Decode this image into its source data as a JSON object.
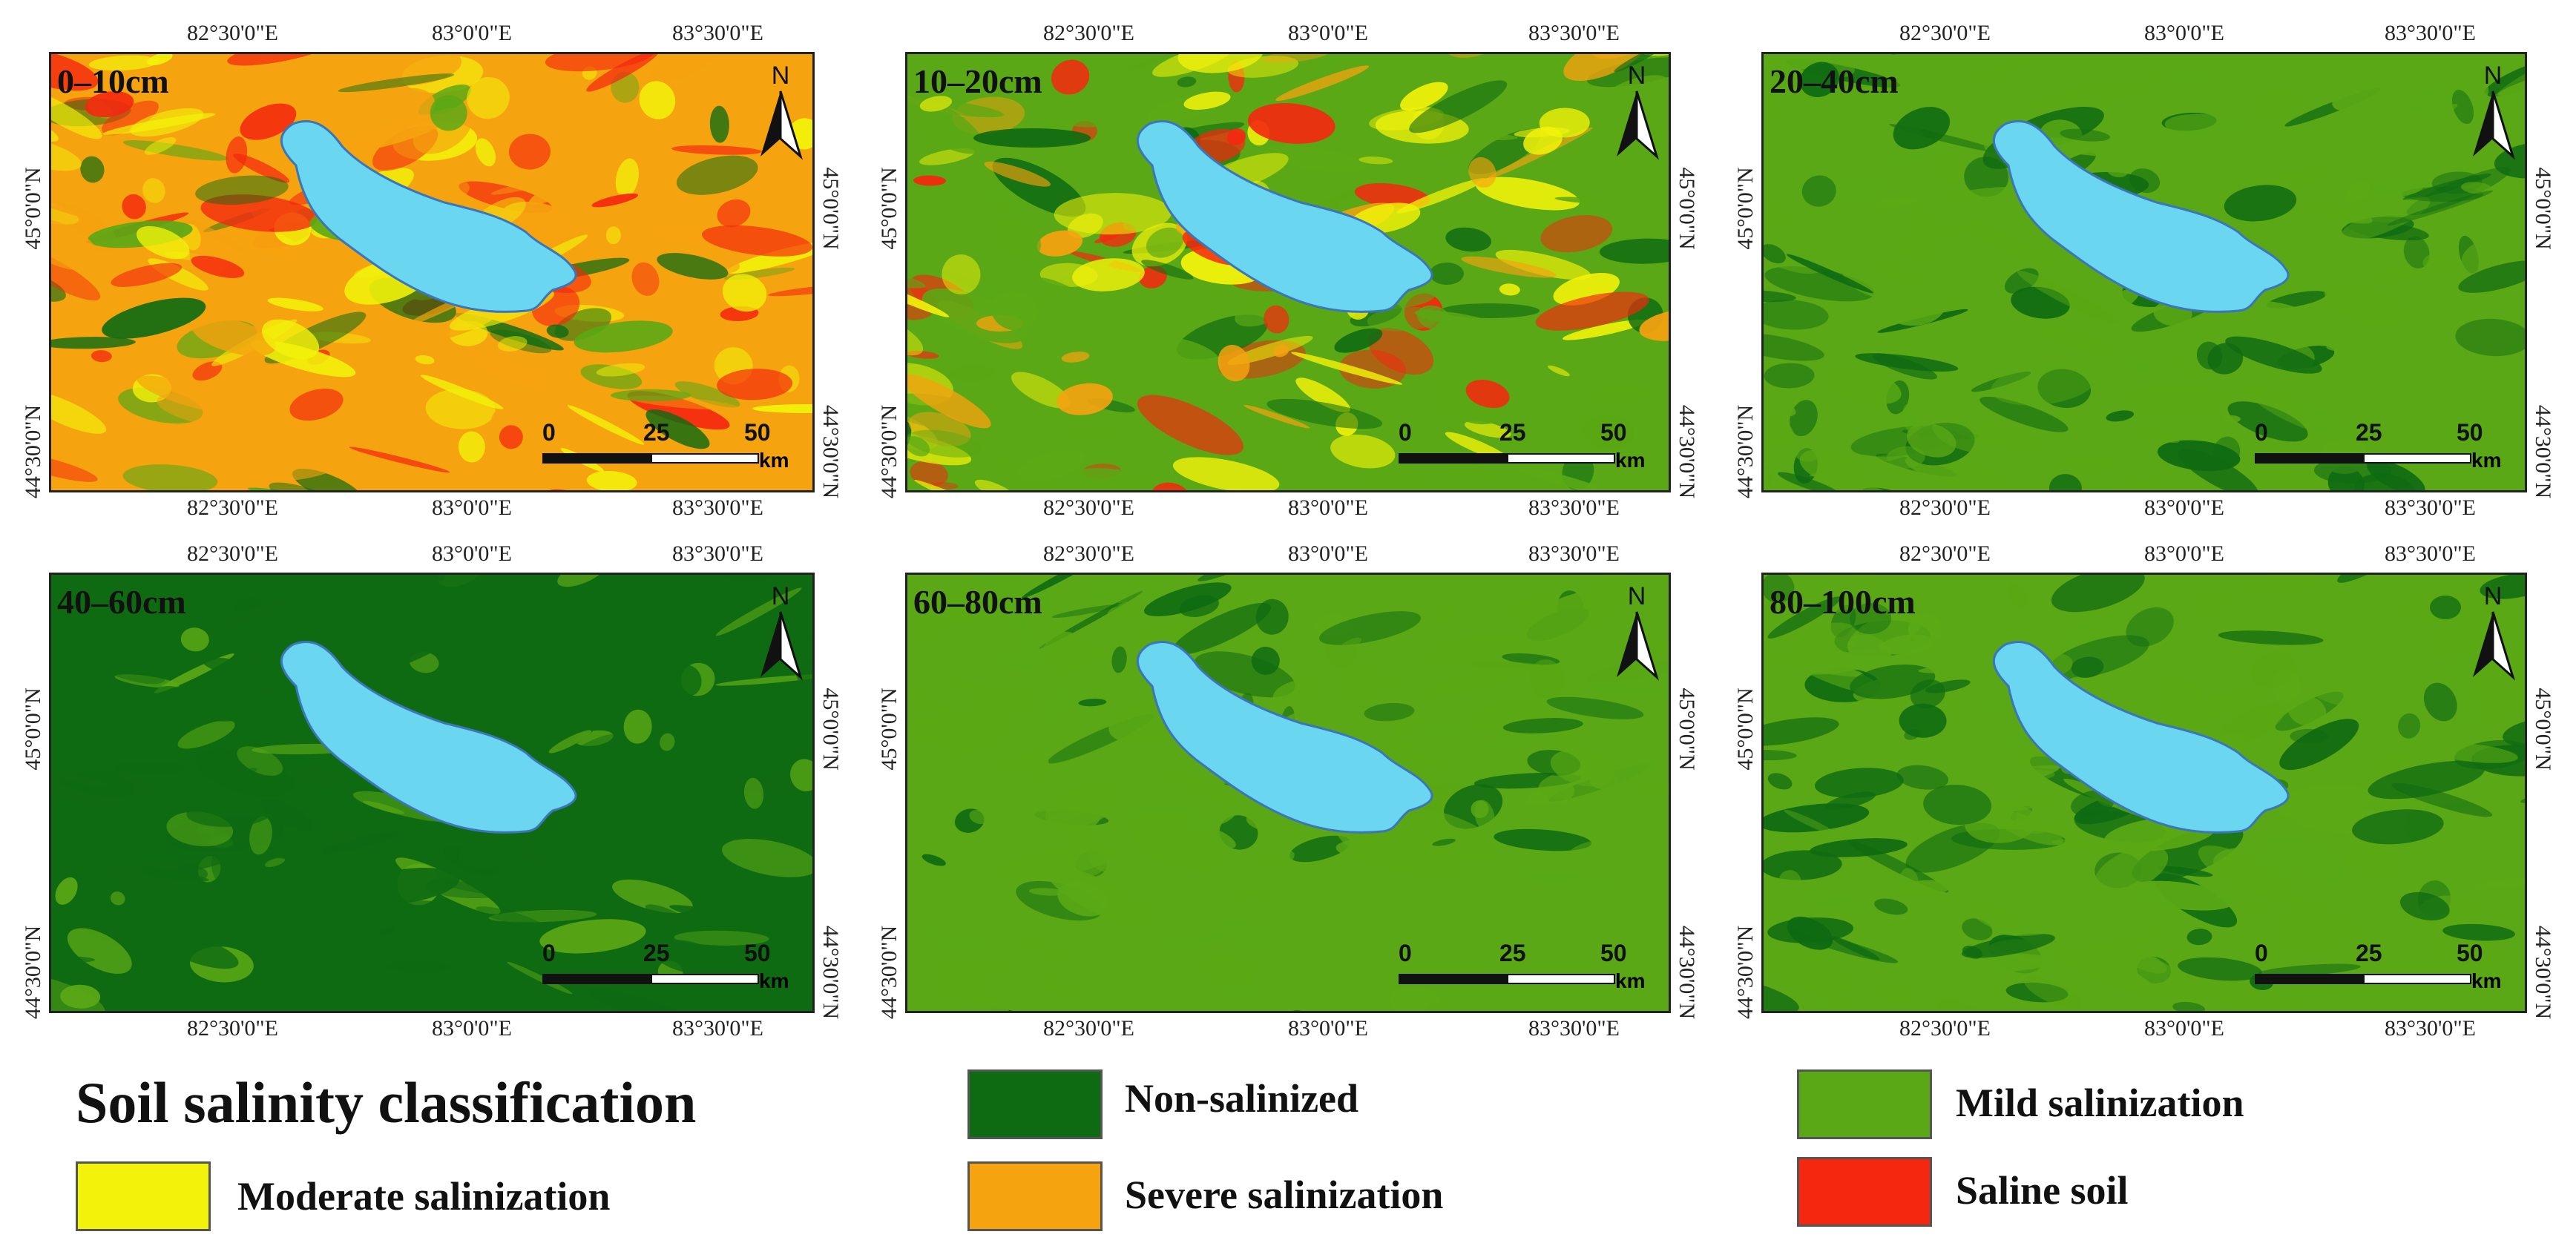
{
  "colors": {
    "non_salinized": "#0f6b12",
    "mild": "#5aa815",
    "moderate": "#f2f20a",
    "severe": "#f5a30f",
    "saline": "#f5280f",
    "lake": "#6ad6ef",
    "lake_edge": "#3a76b8"
  },
  "panels": [
    {
      "label": "0–10cm"
    },
    {
      "label": "10–20cm"
    },
    {
      "label": "20–40cm"
    },
    {
      "label": "40–60cm"
    },
    {
      "label": "60–80cm"
    },
    {
      "label": "80–100cm"
    }
  ],
  "axes": {
    "x_ticks": [
      "82°30'0\"E",
      "83°0'0\"E",
      "83°30'0\"E"
    ],
    "y_ticks": [
      "45°0'0\"N",
      "44°30'0\"N"
    ]
  },
  "north_label": "N",
  "scale_bar": {
    "labels": [
      "0",
      "25",
      "50"
    ],
    "unit": "km"
  },
  "legend": {
    "title": "Soil salinity classification",
    "items": [
      {
        "key": "non_salinized",
        "label": "Non-salinized"
      },
      {
        "key": "mild",
        "label": "Mild salinization"
      },
      {
        "key": "moderate",
        "label": "Moderate salinization"
      },
      {
        "key": "severe",
        "label": "Severe salinization"
      },
      {
        "key": "saline",
        "label": "Saline soil"
      }
    ]
  }
}
